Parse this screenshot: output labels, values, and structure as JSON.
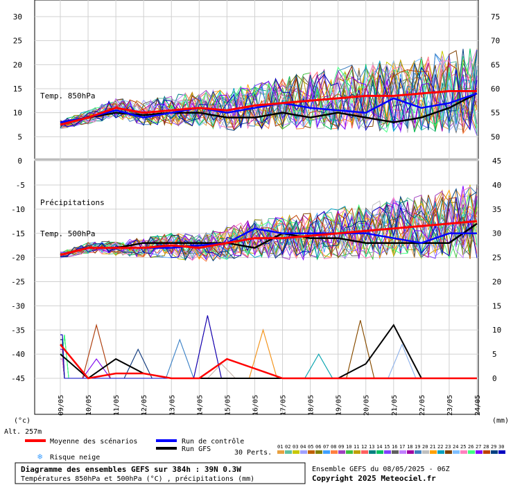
{
  "chart_data": [
    {
      "type": "line",
      "panel": "upper",
      "series_label": "Temp. 850hPa",
      "left_axis_ticks": [
        30,
        25,
        20,
        15,
        10,
        5,
        0
      ],
      "right_axis_ticks": [
        75,
        70,
        65,
        60,
        55,
        50
      ],
      "x_dates": [
        "09/05",
        "10/05",
        "11/05",
        "12/05",
        "13/05",
        "14/05",
        "15/05",
        "16/05",
        "17/05",
        "18/05",
        "19/05",
        "20/05",
        "21/05",
        "22/05",
        "23/05",
        "24/05"
      ],
      "mean_series": {
        "name": "Moyenne des scénarios",
        "color": "#ff0000",
        "values": [
          7.5,
          9,
          11,
          10,
          10.5,
          11,
          10.5,
          11.5,
          12,
          12.5,
          13,
          13.5,
          13.5,
          14,
          14.5,
          14.5
        ]
      },
      "control_series": {
        "name": "Run de contrôle",
        "color": "#0000ff",
        "values": [
          8,
          9,
          10.5,
          9,
          10,
          11,
          10,
          11,
          12,
          11,
          10.5,
          10,
          13,
          11,
          12,
          14
        ]
      },
      "gfs_series": {
        "name": "Run GFS",
        "color": "#000000",
        "values": [
          8,
          9,
          10,
          9.5,
          10,
          10,
          9,
          9,
          10,
          9,
          10,
          9,
          8,
          9,
          11,
          14
        ]
      }
    },
    {
      "type": "line",
      "panel": "lower",
      "series_labels": [
        "Précipitations",
        "Temp. 500hPa"
      ],
      "left_axis_ticks": [
        -5,
        -10,
        -15,
        -20,
        -25,
        -30,
        -35,
        -40,
        -45
      ],
      "right_axis_ticks": [
        45,
        40,
        35,
        30,
        25,
        20,
        15,
        10,
        5,
        0
      ],
      "x_dates": [
        "09/05",
        "10/05",
        "11/05",
        "12/05",
        "13/05",
        "14/05",
        "15/05",
        "16/05",
        "17/05",
        "18/05",
        "19/05",
        "20/05",
        "21/05",
        "22/05",
        "23/05",
        "24/05"
      ],
      "temp500_mean": [
        -19.5,
        -18,
        -18,
        -18,
        -17.5,
        -18,
        -17,
        -16,
        -16,
        -15.5,
        -15,
        -14.5,
        -14,
        -13.5,
        -13,
        -12.5
      ],
      "temp500_control": [
        -19.5,
        -18,
        -18,
        -18,
        -18,
        -17.5,
        -17,
        -14,
        -15,
        -15,
        -15,
        -15,
        -16,
        -17,
        -15,
        -15
      ],
      "temp500_gfs": [
        -19.5,
        -18,
        -18,
        -17,
        -17,
        -17,
        -17,
        -18,
        -15,
        -16,
        -16,
        -17,
        -17,
        -17,
        -17,
        -13
      ],
      "precip_mean_mm": [
        7,
        0,
        1,
        1,
        0,
        0,
        4,
        2,
        0,
        0,
        0,
        0,
        0,
        0,
        0,
        0
      ],
      "precip_gfs_mm": [
        5,
        0,
        4,
        1,
        0,
        0,
        0,
        0,
        0,
        0,
        0,
        3,
        11,
        0,
        0,
        0
      ]
    }
  ],
  "axis": {
    "left_unit": "(°c)",
    "right_unit": "(mm)",
    "altitude": "Alt. 257m"
  },
  "legend": {
    "mean_label": "Moyenne des scénarios",
    "control_label": "Run de contrôle",
    "gfs_label": "Run GFS",
    "snow_label": "Risque neige",
    "perts_label": "30 Perts.",
    "pert_numbers": [
      "01",
      "02",
      "03",
      "04",
      "05",
      "06",
      "07",
      "08",
      "09",
      "10",
      "11",
      "12",
      "13",
      "14",
      "15",
      "16",
      "17",
      "18",
      "19",
      "20",
      "21",
      "22",
      "23",
      "24",
      "25",
      "26",
      "27",
      "28",
      "29",
      "30"
    ],
    "pert_colors": [
      "#e8a040",
      "#60c0a0",
      "#c8c800",
      "#a0a0ff",
      "#c06000",
      "#808000",
      "#40a0ff",
      "#ff8040",
      "#a040c0",
      "#40c040",
      "#c0a000",
      "#ff6060",
      "#008080",
      "#00c060",
      "#8040ff",
      "#606060",
      "#c080ff",
      "#a000a0",
      "#4080c0",
      "#c0c0c0",
      "#ffa000",
      "#00a0c0",
      "#804000",
      "#80c0ff",
      "#ff80c0",
      "#40ff80",
      "#8000ff",
      "#c04000",
      "#004080",
      "#0000c0"
    ]
  },
  "footer": {
    "title": "Diagramme des ensembles GEFS sur 384h : 39N 0.3W",
    "subtitle": "Températures 850hPa et 500hPa (°C) , précipitations (mm)",
    "run_info": "Ensemble GEFS du 08/05/2025 - 06Z",
    "copyright": "Copyright 2025 Meteociel.fr"
  }
}
